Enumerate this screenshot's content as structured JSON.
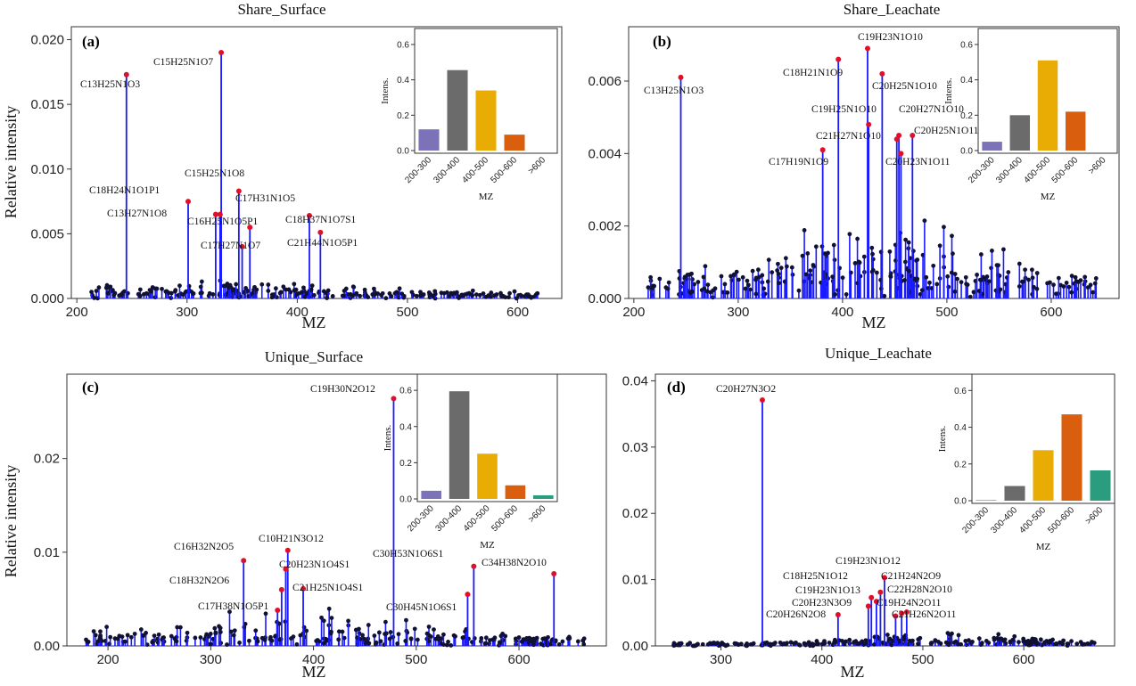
{
  "colors": {
    "stem": "#1a1aff",
    "dot": "#111133",
    "highlight": "#e0102a",
    "inset": [
      "#7b72b8",
      "#6b6b6b",
      "#e8ac05",
      "#d95f0e",
      "#2a9d7f"
    ]
  },
  "chart_data": [
    {
      "type": "bar",
      "panel": "(a)",
      "title": "Share_Surface",
      "xlabel": "MZ",
      "ylabel": "Relative intensity",
      "xlim": [
        195,
        640
      ],
      "ylim": [
        0,
        0.021
      ],
      "xticks": [
        "200",
        "300",
        "400",
        "500",
        "600"
      ],
      "xtick_values": [
        200,
        300,
        400,
        500,
        600
      ],
      "yticks": [
        "0.000",
        "0.005",
        "0.010",
        "0.015",
        "0.020"
      ],
      "ytick_values": [
        0,
        0.005,
        0.01,
        0.015,
        0.02
      ],
      "labeled_peaks": [
        {
          "formula": "C13H25N1O3",
          "x": 245,
          "y": 0.0173
        },
        {
          "formula": "C15H25N1O7",
          "x": 331,
          "y": 0.019
        },
        {
          "formula": "C18H24N1O1P1",
          "x": 301,
          "y": 0.0075
        },
        {
          "formula": "C15H25N1O8",
          "x": 347,
          "y": 0.0083
        },
        {
          "formula": "C13H27N1O8",
          "x": 326,
          "y": 0.0065
        },
        {
          "formula": "C17H31N1O5",
          "x": 330,
          "y": 0.0065
        },
        {
          "formula": "C16H25N1O5P1",
          "x": 357,
          "y": 0.0055
        },
        {
          "formula": "C18H37N1O7S1",
          "x": 411,
          "y": 0.0064
        },
        {
          "formula": "C17H27N1O7",
          "x": 350,
          "y": 0.004
        },
        {
          "formula": "C21H44N1O5P1",
          "x": 421,
          "y": 0.0051
        }
      ],
      "inset": {
        "categories": [
          "200-300",
          "300-400",
          "400-500",
          "500-600",
          ">600"
        ],
        "values": [
          0.12,
          0.455,
          0.34,
          0.09,
          0
        ],
        "ylabel": "Intens.",
        "xlabel": "MZ",
        "yticks": [
          "0.0",
          "0.2",
          "0.4",
          "0.6"
        ],
        "ylim": [
          0,
          0.65
        ]
      }
    },
    {
      "type": "bar",
      "panel": "(b)",
      "title": "Share_Leachate",
      "xlabel": "MZ",
      "ylabel": "",
      "xlim": [
        195,
        665
      ],
      "ylim": [
        0,
        0.0075
      ],
      "xticks": [
        "200",
        "300",
        "400",
        "500",
        "600"
      ],
      "xtick_values": [
        200,
        300,
        400,
        500,
        600
      ],
      "yticks": [
        "0.000",
        "0.002",
        "0.004",
        "0.006"
      ],
      "ytick_values": [
        0,
        0.002,
        0.004,
        0.006
      ],
      "labeled_peaks": [
        {
          "formula": "C13H25N1O3",
          "x": 245,
          "y": 0.0061
        },
        {
          "formula": "C18H21N1O9",
          "x": 396,
          "y": 0.0066
        },
        {
          "formula": "C19H23N1O10",
          "x": 424,
          "y": 0.0069
        },
        {
          "formula": "C20H25N1O10",
          "x": 438,
          "y": 0.0062
        },
        {
          "formula": "C19H25N1O10",
          "x": 425,
          "y": 0.0048
        },
        {
          "formula": "C20H27N1O10",
          "x": 454,
          "y": 0.0045
        },
        {
          "formula": "C21H27N1O10",
          "x": 452,
          "y": 0.0044
        },
        {
          "formula": "C20H25N1O11",
          "x": 467,
          "y": 0.0045
        },
        {
          "formula": "C17H19N1O9",
          "x": 381,
          "y": 0.0041
        },
        {
          "formula": "C20H23N1O11",
          "x": 456,
          "y": 0.004
        }
      ],
      "inset": {
        "categories": [
          "200-300",
          "300-400",
          "400-500",
          "500-600",
          ">600"
        ],
        "values": [
          0.05,
          0.2,
          0.51,
          0.22,
          0
        ],
        "ylabel": "Intens.",
        "xlabel": "MZ",
        "yticks": [
          "0.0",
          "0.2",
          "0.4",
          "0.6"
        ],
        "ylim": [
          0,
          0.65
        ]
      }
    },
    {
      "type": "bar",
      "panel": "(c)",
      "title": "Unique_Surface",
      "xlabel": "MZ",
      "ylabel": "Relative intensity",
      "xlim": [
        160,
        685
      ],
      "ylim": [
        0,
        0.029
      ],
      "xticks": [
        "200",
        "300",
        "400",
        "500",
        "600"
      ],
      "xtick_values": [
        200,
        300,
        400,
        500,
        600
      ],
      "yticks": [
        "0.00",
        "0.01",
        "0.02"
      ],
      "ytick_values": [
        0,
        0.01,
        0.02
      ],
      "labeled_peaks": [
        {
          "formula": "C19H30N2O12",
          "x": 478,
          "y": 0.0264
        },
        {
          "formula": "C16H32N2O5",
          "x": 332,
          "y": 0.0091
        },
        {
          "formula": "C10H21N3O12",
          "x": 375,
          "y": 0.0102
        },
        {
          "formula": "C18H32N2O6",
          "x": 369,
          "y": 0.006
        },
        {
          "formula": "C20H23N1O4S1",
          "x": 373,
          "y": 0.0082
        },
        {
          "formula": "C21H25N1O4S1",
          "x": 390,
          "y": 0.0061
        },
        {
          "formula": "C30H53N1O6S1",
          "x": 556,
          "y": 0.0085
        },
        {
          "formula": "C34H38N2O10",
          "x": 634,
          "y": 0.0077
        },
        {
          "formula": "C17H38N1O5P1",
          "x": 365,
          "y": 0.0038
        },
        {
          "formula": "C30H45N1O6S1",
          "x": 550,
          "y": 0.0055
        }
      ],
      "inset": {
        "categories": [
          "200-300",
          "300-400",
          "400-500",
          "500-600",
          ">600"
        ],
        "values": [
          0.045,
          0.595,
          0.25,
          0.075,
          0.02
        ],
        "ylabel": "Intens.",
        "xlabel": "MZ",
        "yticks": [
          "0.0",
          "0.2",
          "0.4",
          "0.6"
        ],
        "ylim": [
          0,
          0.65
        ]
      }
    },
    {
      "type": "bar",
      "panel": "(d)",
      "title": "Unique_Leachate",
      "xlabel": "MZ",
      "ylabel": "",
      "xlim": [
        235,
        690
      ],
      "ylim": [
        0,
        0.041
      ],
      "xticks": [
        "300",
        "400",
        "500",
        "600"
      ],
      "xtick_values": [
        300,
        400,
        500,
        600
      ],
      "yticks": [
        "0.00",
        "0.01",
        "0.02",
        "0.03",
        "0.04"
      ],
      "ytick_values": [
        0,
        0.01,
        0.02,
        0.03,
        0.04
      ],
      "labeled_peaks": [
        {
          "formula": "C20H27N3O2",
          "x": 341,
          "y": 0.0371
        },
        {
          "formula": "C19H23N1O12",
          "x": 462,
          "y": 0.0103
        },
        {
          "formula": "C18H25N1O12",
          "x": 449,
          "y": 0.0073
        },
        {
          "formula": "C21H24N2O9",
          "x": 458,
          "y": 0.0081
        },
        {
          "formula": "C19H23N1O13",
          "x": 454,
          "y": 0.0067
        },
        {
          "formula": "C22H28N2O10",
          "x": 479,
          "y": 0.0049
        },
        {
          "formula": "C20H23N3O9",
          "x": 446,
          "y": 0.006
        },
        {
          "formula": "C19H24N2O11",
          "x": 473,
          "y": 0.0045
        },
        {
          "formula": "C20H26N2O8",
          "x": 416,
          "y": 0.0047
        },
        {
          "formula": "C21H26N2O11",
          "x": 484,
          "y": 0.0051
        }
      ],
      "inset": {
        "categories": [
          "200-300",
          "300-400",
          "400-500",
          "500-600",
          ">600"
        ],
        "values": [
          0.003,
          0.08,
          0.275,
          0.47,
          0.165
        ],
        "ylabel": "Intens.",
        "xlabel": "MZ",
        "yticks": [
          "0.0",
          "0.2",
          "0.4",
          "0.6"
        ],
        "ylim": [
          0,
          0.65
        ]
      }
    }
  ]
}
